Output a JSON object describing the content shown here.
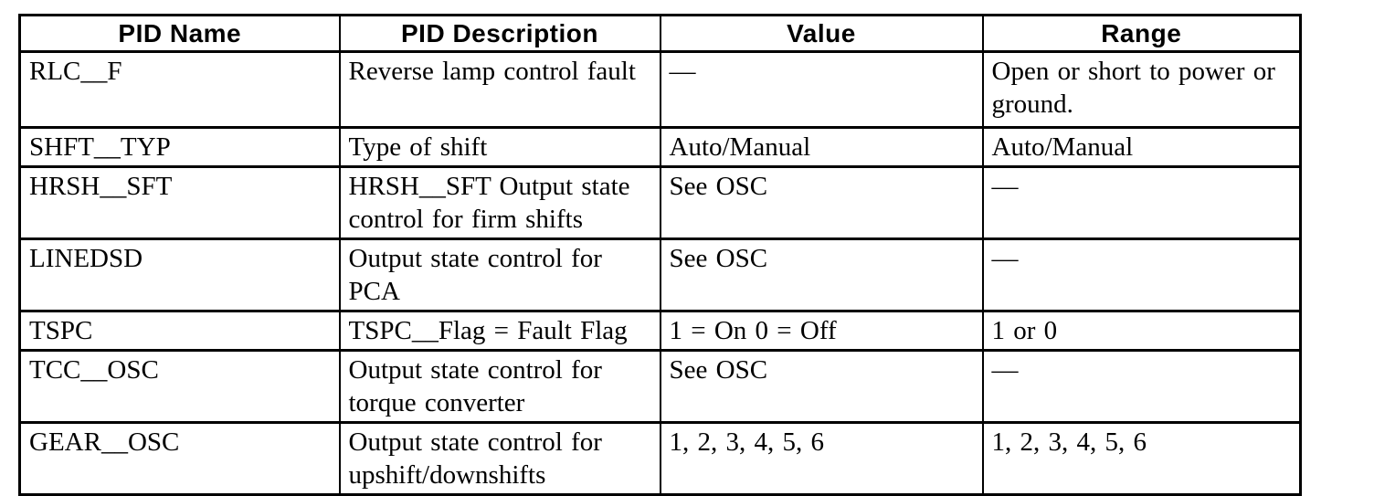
{
  "table": {
    "columns": [
      {
        "label": "PID Name"
      },
      {
        "label": "PID Description"
      },
      {
        "label": "Value"
      },
      {
        "label": "Range"
      }
    ],
    "rows": [
      {
        "pid_name": "RLC__F",
        "pid_description": "Reverse lamp control fault",
        "value": "—",
        "range": "Open or short to power or ground."
      },
      {
        "pid_name": "SHFT__TYP",
        "pid_description": "Type of shift",
        "value": "Auto/Manual",
        "range": "Auto/Manual"
      },
      {
        "pid_name": "HRSH__SFT",
        "pid_description": "HRSH__SFT Output state control for firm shifts",
        "value": "See OSC",
        "range": "—"
      },
      {
        "pid_name": "LINEDSD",
        "pid_description": "Output state control for PCA",
        "value": "See OSC",
        "range": "—"
      },
      {
        "pid_name": "TSPC",
        "pid_description": "TSPC__Flag = Fault Flag",
        "value": "1 = On 0 = Off",
        "range": "1 or 0"
      },
      {
        "pid_name": "TCC__OSC",
        "pid_description": "Output state control for torque converter",
        "value": "See OSC",
        "range": "—"
      },
      {
        "pid_name": "GEAR__OSC",
        "pid_description": "Output state control for upshift/downshifts",
        "value": "1, 2, 3, 4, 5, 6",
        "range": "1, 2, 3, 4, 5, 6"
      }
    ],
    "colors": {
      "border": "#000000",
      "text": "#000000",
      "background": "#ffffff"
    }
  }
}
